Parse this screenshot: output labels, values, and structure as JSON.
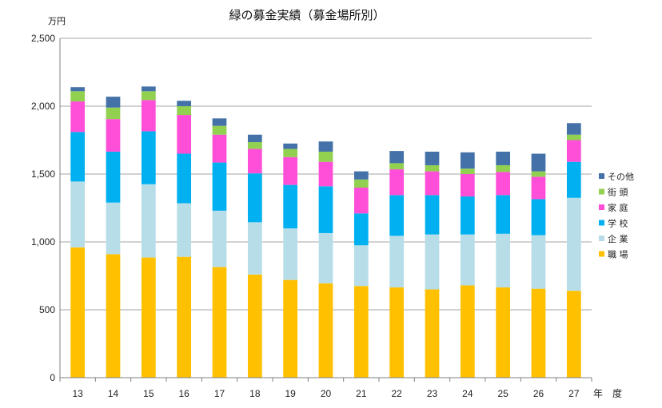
{
  "chart_data": {
    "type": "bar",
    "stacked": true,
    "title": "緑の募金実績（募金場所別）",
    "ylabel": "万円",
    "xlabel": "年　度",
    "ylim": [
      0,
      2500
    ],
    "yticks": [
      "0",
      "500",
      "1,000",
      "1,500",
      "2,000",
      "2,500"
    ],
    "ytick_values": [
      0,
      500,
      1000,
      1500,
      2000,
      2500
    ],
    "grid": true,
    "legend_position": "right",
    "categories": [
      "13",
      "14",
      "15",
      "16",
      "17",
      "18",
      "19",
      "20",
      "21",
      "22",
      "23",
      "24",
      "25",
      "26",
      "27"
    ],
    "series": [
      {
        "name": "職 場",
        "color": "#FFC000",
        "values": [
          960,
          910,
          885,
          890,
          815,
          760,
          720,
          695,
          675,
          665,
          650,
          680,
          665,
          655,
          640
        ]
      },
      {
        "name": "企 業",
        "color": "#B7DEE8",
        "values": [
          485,
          380,
          540,
          395,
          415,
          385,
          380,
          370,
          300,
          380,
          405,
          375,
          395,
          395,
          685
        ]
      },
      {
        "name": "学 校",
        "color": "#00B0F0",
        "values": [
          365,
          375,
          390,
          365,
          355,
          360,
          320,
          345,
          235,
          300,
          290,
          280,
          285,
          265,
          265
        ]
      },
      {
        "name": "家 庭",
        "color": "#FF4FD8",
        "values": [
          225,
          240,
          230,
          285,
          205,
          180,
          205,
          180,
          190,
          190,
          175,
          165,
          170,
          165,
          160
        ]
      },
      {
        "name": "街 頭",
        "color": "#92D050",
        "values": [
          75,
          85,
          65,
          65,
          65,
          50,
          60,
          75,
          60,
          45,
          45,
          40,
          50,
          40,
          40
        ]
      },
      {
        "name": "その他",
        "color": "#4472A8",
        "values": [
          30,
          80,
          35,
          40,
          55,
          55,
          40,
          75,
          60,
          90,
          100,
          120,
          100,
          130,
          85
        ]
      }
    ]
  }
}
